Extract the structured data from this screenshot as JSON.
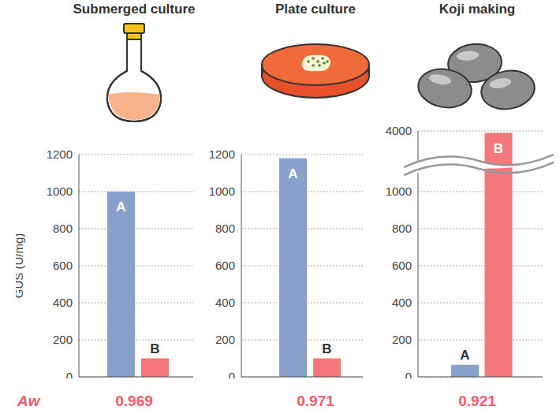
{
  "chart_data": [
    {
      "type": "bar",
      "title": "Submerged culture",
      "categories": [
        "A",
        "B"
      ],
      "values": [
        1000,
        100
      ],
      "colors": [
        "#87a0cc",
        "#f4777c"
      ],
      "ylim": [
        0,
        1200
      ],
      "yticks": [
        0,
        200,
        400,
        600,
        800,
        1000,
        1200
      ],
      "grid": true,
      "tick_labels": "y",
      "ylabel": "GUS (U/mg)",
      "aw_label": "Aw",
      "aw": 0.969
    },
    {
      "type": "bar",
      "title": "Plate culture",
      "categories": [
        "A",
        "B"
      ],
      "values": [
        1180,
        100
      ],
      "colors": [
        "#87a0cc",
        "#f4777c"
      ],
      "ylim": [
        0,
        1200
      ],
      "yticks": [
        0,
        200,
        400,
        600,
        800,
        1000,
        1200
      ],
      "grid": true,
      "tick_labels": "y",
      "aw": 0.971
    },
    {
      "type": "bar",
      "title": "Koji making",
      "categories": [
        "A",
        "B"
      ],
      "values": [
        65,
        3900
      ],
      "colors": [
        "#87a0cc",
        "#f4777c"
      ],
      "ylim": [
        0,
        4000
      ],
      "yticks": [
        0,
        200,
        400,
        600,
        800,
        1000,
        4000
      ],
      "grid": true,
      "tick_labels": "y",
      "aw": 0.921
    }
  ]
}
